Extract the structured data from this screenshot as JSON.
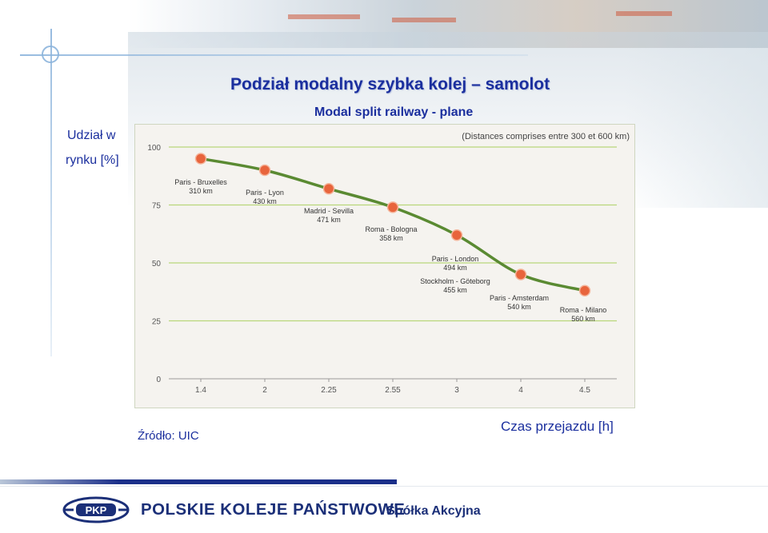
{
  "title": "Podział modalny szybka kolej – samolot",
  "subtitle": "Modal split railway - plane",
  "y_axis_label_line1": "Udział w",
  "y_axis_label_line2": "rynku [%]",
  "x_axis_label": "Czas przejazdu [h]",
  "source": "Źródło: UIC",
  "footer": {
    "company": "POLSKIE KOLEJE PAŃSTWOWE",
    "company_suffix": "Spółka Akcyjna",
    "logo_text": "PKP"
  },
  "colors": {
    "text_blue": "#1b2f9e",
    "line_green": "#5a8a32",
    "grid_green": "#b9d67a",
    "marker_orange": "#e8643c"
  },
  "chart_data": {
    "type": "line",
    "title": "",
    "note": "(Distances comprises entre 300 et 600 km)",
    "xlabel": "Czas przejazdu [h]",
    "ylabel": "Udział w rynku [%]",
    "categories": [
      "1.4",
      "2",
      "2.25",
      "2.55",
      "3",
      "4",
      "4.5"
    ],
    "y_ticks": [
      "100",
      "75",
      "50",
      "25",
      "0"
    ],
    "ylim": [
      0,
      100
    ],
    "grid": true,
    "series": [
      {
        "values": [
          95,
          90,
          82,
          74,
          62,
          45,
          38
        ]
      }
    ],
    "point_labels": [
      {
        "route": "Paris - Bruxelles",
        "distance": "310 km"
      },
      {
        "route": "Paris - Lyon",
        "distance": "430 km"
      },
      {
        "route": "Madrid - Sevilla",
        "distance": "471 km"
      },
      {
        "route": "Roma - Bologna",
        "distance": "358 km"
      },
      {
        "route": "Paris - London",
        "distance": "494 km"
      },
      {
        "route": "Stockholm - Göteborg",
        "distance": "455 km"
      },
      {
        "route": "Paris - Amsterdam",
        "distance": "540 km"
      },
      {
        "route": "Roma - Milano",
        "distance": "560 km"
      }
    ]
  }
}
